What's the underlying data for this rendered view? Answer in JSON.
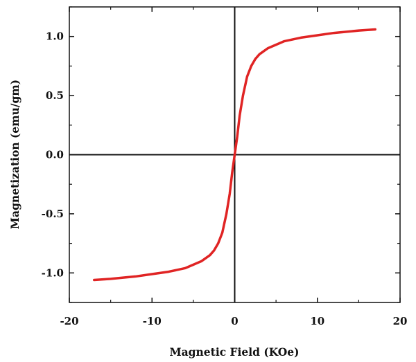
{
  "chart_data": {
    "type": "line",
    "title": "",
    "xlabel": "Magnetic Field (KOe)",
    "ylabel": "Magnetization (emu/gm)",
    "xlim": [
      -20,
      20
    ],
    "ylim": [
      -1.25,
      1.25
    ],
    "xticks": [
      -20,
      -10,
      0,
      10,
      20
    ],
    "xtick_labels": [
      "-20",
      "-10",
      "0",
      "10",
      "20"
    ],
    "yticks": [
      -1.0,
      -0.5,
      0.0,
      0.5,
      1.0
    ],
    "ytick_labels": [
      "-1.0",
      "-0.5",
      "0.0",
      "0.5",
      "1.0"
    ],
    "grid": false,
    "zero_lines": true,
    "series": [
      {
        "color": "#e02424",
        "x": [
          -17,
          -15,
          -12,
          -10,
          -8,
          -6,
          -5,
          -4,
          -3,
          -2.5,
          -2,
          -1.5,
          -1,
          -0.6,
          -0.3,
          0,
          0.3,
          0.6,
          1,
          1.5,
          2,
          2.5,
          3,
          4,
          5,
          6,
          8,
          10,
          12,
          15,
          17
        ],
        "y": [
          -1.06,
          -1.05,
          -1.03,
          -1.01,
          -0.99,
          -0.96,
          -0.93,
          -0.9,
          -0.85,
          -0.81,
          -0.75,
          -0.66,
          -0.5,
          -0.33,
          -0.15,
          0.0,
          0.15,
          0.33,
          0.5,
          0.66,
          0.75,
          0.81,
          0.85,
          0.9,
          0.93,
          0.96,
          0.99,
          1.01,
          1.03,
          1.05,
          1.06
        ]
      }
    ]
  }
}
